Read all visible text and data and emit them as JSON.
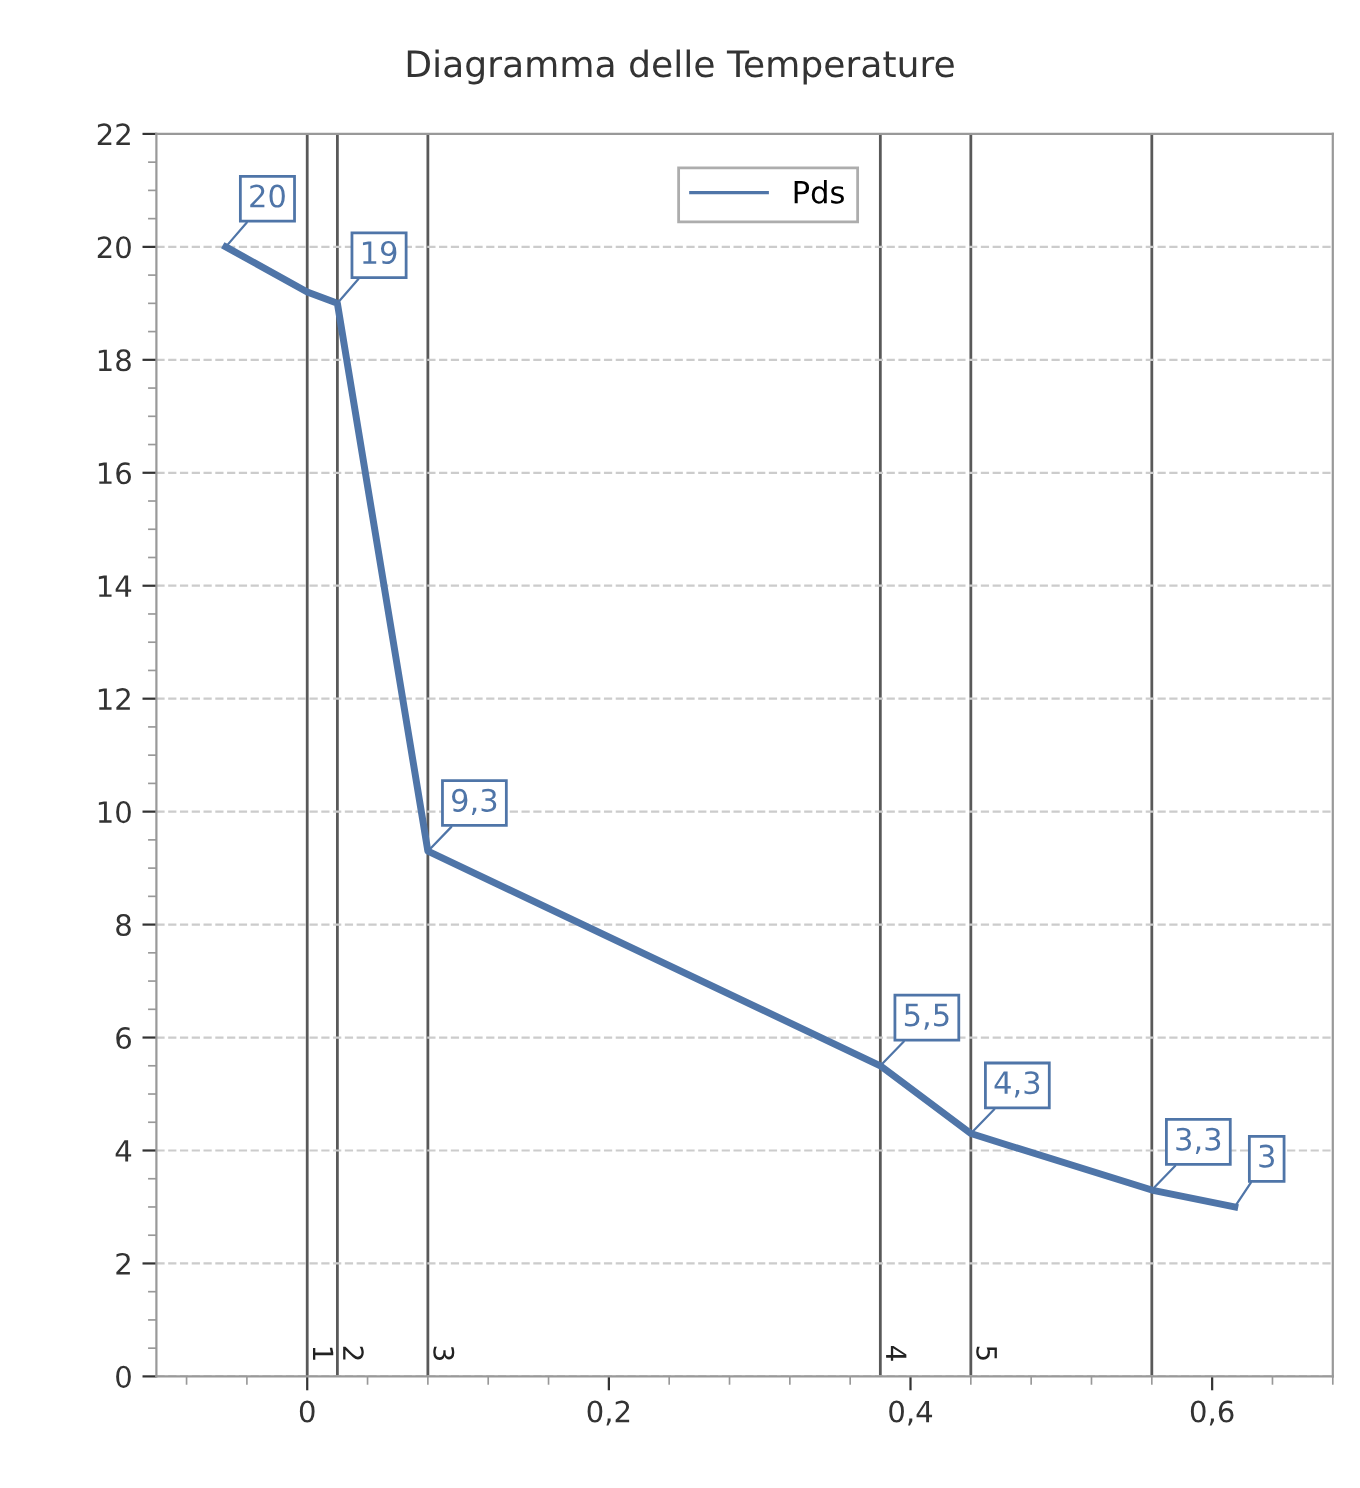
{
  "chart_data": {
    "type": "line",
    "title": "Diagramma delle Temperature",
    "x": [
      -0.054,
      0,
      0.02,
      0.08,
      0.38,
      0.44,
      0.56,
      0.615
    ],
    "series": [
      {
        "name": "Pds",
        "color": "#4f75a8",
        "values": [
          20,
          19.2,
          19,
          9.3,
          5.5,
          4.3,
          3.3,
          3
        ],
        "value_labels": [
          "20",
          null,
          "19",
          "9,3",
          "5,5",
          "4,3",
          "3,3",
          "3"
        ]
      }
    ],
    "xlim": [
      -0.1,
      0.68
    ],
    "xticks": [
      0,
      {
        "value": 0.2,
        "label": "0,2"
      },
      {
        "value": 0.4,
        "label": "0,4"
      },
      {
        "value": 0.6,
        "label": "0,6"
      }
    ],
    "ylim": [
      0,
      22
    ],
    "yticks": [
      0,
      2,
      4,
      6,
      8,
      10,
      12,
      14,
      16,
      18,
      20,
      22
    ],
    "annotations": [
      {
        "text": "1",
        "x": 0,
        "y": 0.25
      },
      {
        "text": "2",
        "x": 0.02,
        "y": 0.25
      },
      {
        "text": "3",
        "x": 0.08,
        "y": 0.25
      },
      {
        "text": "4",
        "x": 0.38,
        "y": 0.25
      },
      {
        "text": "5",
        "x": 0.44,
        "y": 0.25
      }
    ],
    "ref_lines": [
      {
        "axis": "x",
        "value": 0,
        "color": "#595959"
      },
      {
        "axis": "x",
        "value": 0.02,
        "color": "#595959"
      },
      {
        "axis": "x",
        "value": 0.08,
        "color": "#595959"
      },
      {
        "axis": "x",
        "value": 0.38,
        "color": "#595959"
      },
      {
        "axis": "x",
        "value": 0.44,
        "color": "#595959"
      },
      {
        "axis": "x",
        "value": 0.56,
        "color": "#595959"
      }
    ],
    "grid": "y",
    "legend": "top",
    "marker": "none",
    "line_style": "solid"
  }
}
